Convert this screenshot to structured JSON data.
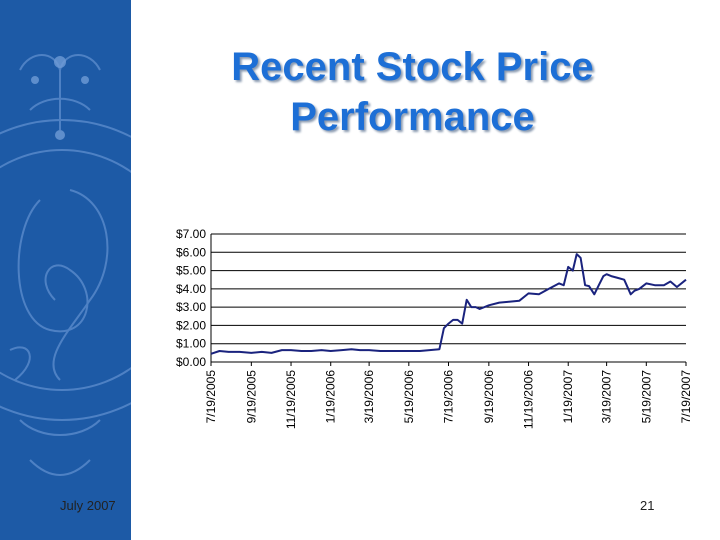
{
  "slide": {
    "title_line1": "Recent Stock Price",
    "title_line2": "Performance",
    "footer_date": "July 2007",
    "page_number": "21"
  },
  "colors": {
    "sidebar": "#1d5aa6",
    "title": "#1d6fd6",
    "series_line": "#1a237e"
  },
  "chart_data": {
    "type": "line",
    "title": "",
    "xlabel": "",
    "ylabel": "",
    "ylim": [
      0,
      7
    ],
    "yticks": [
      "$0.00",
      "$1.00",
      "$2.00",
      "$3.00",
      "$4.00",
      "$5.00",
      "$6.00",
      "$7.00"
    ],
    "xticks": [
      "7/19/2005",
      "9/19/2005",
      "11/19/2005",
      "1/19/2006",
      "3/19/2006",
      "5/19/2006",
      "7/19/2006",
      "9/19/2006",
      "11/19/2006",
      "1/19/2007",
      "3/19/2007",
      "5/19/2007",
      "7/19/2007"
    ],
    "grid": "horizontal",
    "series": [
      {
        "x": [
          "7/19/2005",
          "8/1/2005",
          "8/15/2005",
          "9/1/2005",
          "9/19/2005",
          "10/5/2005",
          "10/20/2005",
          "11/5/2005",
          "11/19/2005",
          "12/5/2005",
          "12/20/2005",
          "1/5/2006",
          "1/19/2006",
          "2/5/2006",
          "2/20/2006",
          "3/5/2006",
          "3/19/2006",
          "4/5/2006",
          "4/20/2006",
          "5/5/2006",
          "5/19/2006",
          "6/5/2006",
          "6/20/2006",
          "7/5/2006",
          "7/12/2006",
          "7/19/2006",
          "7/26/2006",
          "8/2/2006",
          "8/9/2006",
          "8/16/2006",
          "8/23/2006",
          "8/30/2006",
          "9/5/2006",
          "9/19/2006",
          "10/5/2006",
          "10/20/2006",
          "11/5/2006",
          "11/19/2006",
          "12/5/2006",
          "12/20/2006",
          "1/5/2007",
          "1/12/2007",
          "1/19/2007",
          "1/26/2007",
          "2/1/2007",
          "2/7/2007",
          "2/14/2007",
          "2/20/2007",
          "2/28/2007",
          "3/7/2007",
          "3/14/2007",
          "3/19/2007",
          "3/26/2007",
          "4/5/2007",
          "4/15/2007",
          "4/25/2007",
          "5/1/2007",
          "5/8/2007",
          "5/19/2007",
          "6/1/2007",
          "6/15/2007",
          "6/25/2007",
          "7/5/2007",
          "7/19/2007"
        ],
        "y": [
          0.45,
          0.6,
          0.55,
          0.55,
          0.5,
          0.55,
          0.5,
          0.65,
          0.65,
          0.6,
          0.6,
          0.65,
          0.6,
          0.65,
          0.7,
          0.65,
          0.65,
          0.6,
          0.6,
          0.6,
          0.6,
          0.6,
          0.65,
          0.7,
          1.85,
          2.1,
          2.3,
          2.3,
          2.1,
          3.4,
          3.0,
          3.0,
          2.9,
          3.1,
          3.25,
          3.3,
          3.35,
          3.75,
          3.7,
          4.0,
          4.3,
          4.2,
          5.2,
          5.0,
          5.9,
          5.7,
          4.2,
          4.15,
          3.7,
          4.2,
          4.7,
          4.8,
          4.7,
          4.6,
          4.5,
          3.7,
          3.9,
          4.0,
          4.3,
          4.2,
          4.2,
          4.4,
          4.1,
          4.5
        ]
      }
    ]
  }
}
